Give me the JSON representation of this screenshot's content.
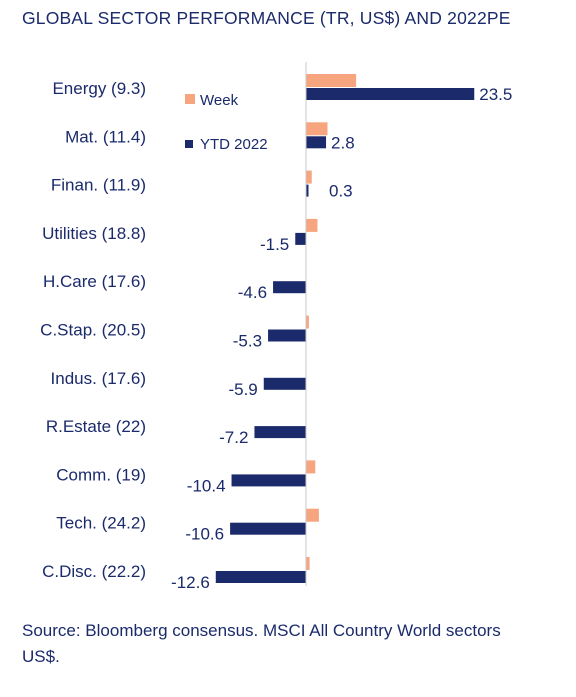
{
  "title": "GLOBAL SECTOR PERFORMANCE (TR, US$) AND 2022PE",
  "source": "Source: Bloomberg consensus. MSCI All Country World sectors US$.",
  "colors": {
    "week": "#f7a57e",
    "ytd": "#1b2a6b",
    "axis": "#c8c8c8",
    "text": "#1b2a6b"
  },
  "chart_data": {
    "type": "bar",
    "orientation": "horizontal",
    "categories": [
      "Energy (9.3)",
      "Mat. (11.4)",
      "Finan. (11.9)",
      "Utilities (18.8)",
      "H.Care (17.6)",
      "C.Stap. (20.5)",
      "Indus. (17.6)",
      "R.Estate (22)",
      "Comm. (19)",
      "Tech. (24.2)",
      "C.Disc. (22.2)"
    ],
    "series": [
      {
        "name": "Week",
        "values": [
          7.0,
          3.0,
          0.8,
          1.6,
          0.0,
          0.4,
          0.0,
          0.0,
          1.3,
          1.8,
          0.5
        ]
      },
      {
        "name": "YTD 2022",
        "values": [
          23.5,
          2.8,
          0.3,
          -1.5,
          -4.6,
          -5.3,
          -5.9,
          -7.2,
          -10.4,
          -10.6,
          -12.6
        ],
        "labels": [
          "23.5",
          "2.8",
          "0.3",
          "-1.5",
          "-4.6",
          "-5.3",
          "-5.9",
          "-7.2",
          "-10.4",
          "-10.6",
          "-12.6"
        ]
      }
    ],
    "legend_position": "top-left-inside",
    "grid": false
  }
}
